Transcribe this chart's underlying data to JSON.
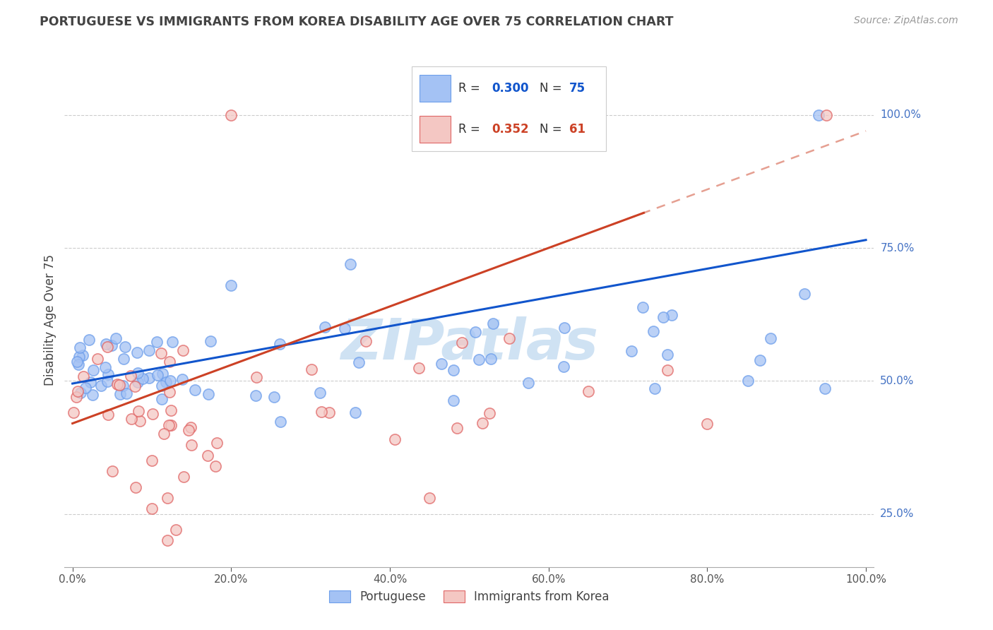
{
  "title": "PORTUGUESE VS IMMIGRANTS FROM KOREA DISABILITY AGE OVER 75 CORRELATION CHART",
  "source": "Source: ZipAtlas.com",
  "ylabel": "Disability Age Over 75",
  "blue_R": "0.300",
  "blue_N": "75",
  "pink_R": "0.352",
  "pink_N": "61",
  "blue_color": "#a4c2f4",
  "pink_color": "#f4c7c3",
  "blue_edge_color": "#6d9eeb",
  "pink_edge_color": "#e06666",
  "blue_line_color": "#1155cc",
  "pink_line_color": "#cc4125",
  "right_axis_color": "#4472c4",
  "title_color": "#434343",
  "source_color": "#999999",
  "background_color": "#ffffff",
  "watermark_color": "#cfe2f3",
  "grid_color": "#c0c0c0",
  "ytick_values": [
    25,
    50,
    75,
    100
  ],
  "ytick_labels": [
    "25.0%",
    "50.0%",
    "75.0%",
    "100.0%"
  ],
  "xtick_positions": [
    0,
    20,
    40,
    60,
    80,
    100
  ],
  "xtick_labels": [
    "0.0%",
    "20.0%",
    "40.0%",
    "60.0%",
    "80.0%",
    "100.0%"
  ],
  "ylim_min": 15,
  "ylim_max": 108,
  "xlim_min": -1,
  "xlim_max": 101,
  "blue_intercept": 49.5,
  "blue_slope": 0.27,
  "pink_intercept": 42.0,
  "pink_slope": 0.55
}
